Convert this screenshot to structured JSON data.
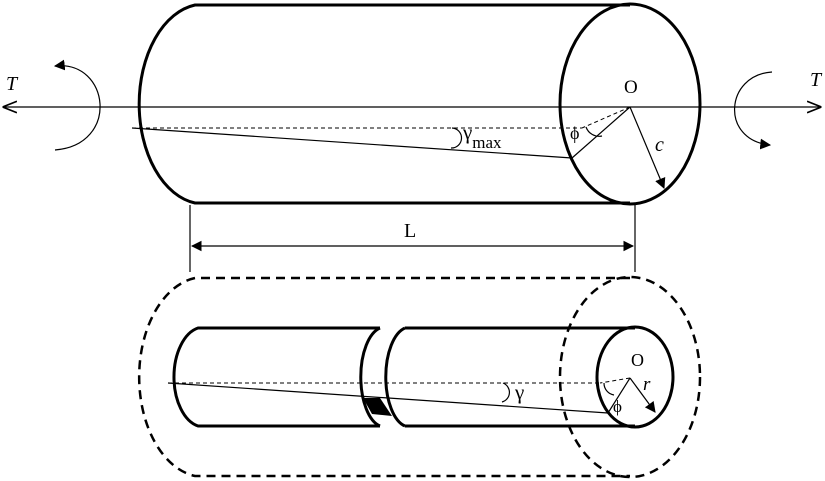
{
  "labels": {
    "torque_left": "T",
    "torque_right": "T",
    "center_top": "O",
    "gamma_max_symbol": "γ",
    "gamma_max_subscript": "max",
    "phi_top": "ϕ",
    "radius_outer": "c",
    "length": "L",
    "center_bottom": "O",
    "gamma_symbol": "γ",
    "radius_inner": "r",
    "phi_bottom": "ϕ"
  }
}
